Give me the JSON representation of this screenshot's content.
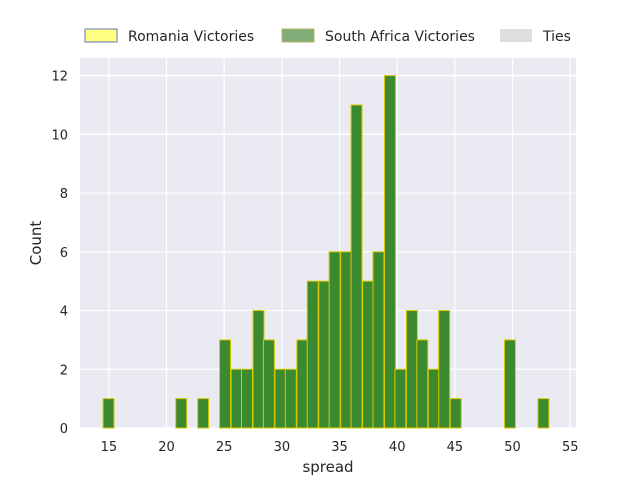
{
  "chart_data": {
    "type": "bar",
    "title": "",
    "xlabel": "spread",
    "ylabel": "Count",
    "xlim": [
      12.5,
      55.5
    ],
    "ylim": [
      0,
      12.6
    ],
    "xticks": [
      15,
      20,
      25,
      30,
      35,
      40,
      45,
      50,
      55
    ],
    "yticks": [
      0,
      2,
      4,
      6,
      8,
      10,
      12
    ],
    "grid": true,
    "legend_position": "top",
    "bin_width": 0.95,
    "series": [
      {
        "name": "Romania Victories",
        "color": "#ffff80",
        "edge": "#6677bb",
        "values": []
      },
      {
        "name": "South Africa Victories",
        "color": "#3b8a2f",
        "legend_color": "#80ae78",
        "edge": "#d8c800",
        "bins": [
          {
            "x": 14.5,
            "count": 1
          },
          {
            "x": 20.8,
            "count": 1
          },
          {
            "x": 22.7,
            "count": 1
          },
          {
            "x": 24.6,
            "count": 3
          },
          {
            "x": 25.6,
            "count": 2
          },
          {
            "x": 26.5,
            "count": 2
          },
          {
            "x": 27.5,
            "count": 4
          },
          {
            "x": 28.4,
            "count": 3
          },
          {
            "x": 29.4,
            "count": 2
          },
          {
            "x": 30.3,
            "count": 2
          },
          {
            "x": 31.3,
            "count": 3
          },
          {
            "x": 32.2,
            "count": 5
          },
          {
            "x": 33.2,
            "count": 5
          },
          {
            "x": 34.1,
            "count": 6
          },
          {
            "x": 35.1,
            "count": 6
          },
          {
            "x": 36.0,
            "count": 11
          },
          {
            "x": 37.0,
            "count": 5
          },
          {
            "x": 37.9,
            "count": 6
          },
          {
            "x": 38.9,
            "count": 12
          },
          {
            "x": 39.8,
            "count": 2
          },
          {
            "x": 40.8,
            "count": 4
          },
          {
            "x": 41.7,
            "count": 3
          },
          {
            "x": 42.7,
            "count": 2
          },
          {
            "x": 43.6,
            "count": 4
          },
          {
            "x": 44.6,
            "count": 1
          },
          {
            "x": 49.3,
            "count": 3
          },
          {
            "x": 52.2,
            "count": 1
          }
        ]
      },
      {
        "name": "Ties",
        "color": "#dedede",
        "values": []
      }
    ]
  }
}
